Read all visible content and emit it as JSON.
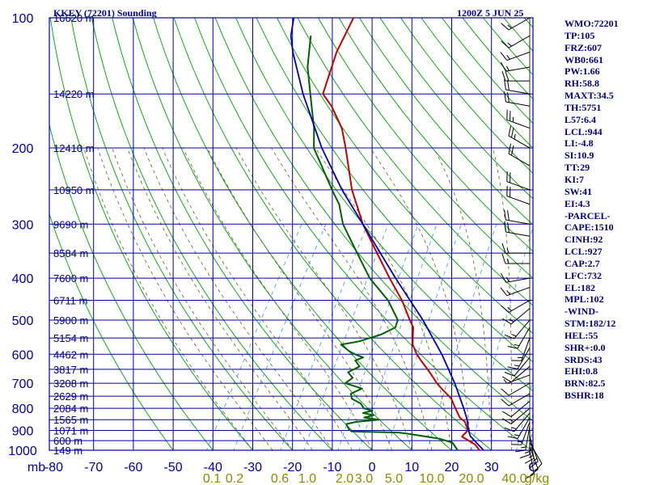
{
  "header": {
    "station": "KKEY (72201) Sounding",
    "time": "1200Z  5 JUN 25"
  },
  "colors": {
    "frame": "#0000a0",
    "dry_adiabat": "#00a000",
    "moist_adiabat": "#6b5a2a",
    "mixing_ratio": "#3399ff",
    "temperature": "#c00000",
    "dewpoint": "#006000",
    "parcel": "#0000b0",
    "wind_barb": "#000000",
    "label_text": "#0000a0",
    "mr_label": "#8c8c00"
  },
  "stats": [
    "WMO:72201",
    "TP:105",
    "FRZ:607",
    "WB0:661",
    "PW:1.66",
    "RH:58.8",
    "MAXT:34.5",
    "TH:5751",
    "L57:6.4",
    "LCL:944",
    "LI:-4.8",
    "SI:10.9",
    "TT:29",
    "KI:7",
    "SW:41",
    "EI:4.3",
    "-PARCEL-",
    "CAPE:1510",
    "CINH:92",
    "LCL:927",
    "CAP:2.7",
    "LFC:732",
    "EL:182",
    "MPL:102",
    "-WIND-",
    "STM:182/12",
    "HEL:55",
    "SHR+:0.0",
    "SRDS:43",
    "EHI:0.8",
    "BRN:82.5",
    "BSHR:18"
  ],
  "chart_data": {
    "type": "skew-t",
    "y_axis": {
      "scale": "log-pressure",
      "unit": "mb",
      "range": [
        1000,
        100
      ],
      "tick_labels": [
        "100",
        "200",
        "300",
        "400",
        "500",
        "600",
        "700",
        "800",
        "900",
        "1000"
      ]
    },
    "x_axis": {
      "unit": "C",
      "range": [
        -80,
        40
      ],
      "tick_labels": [
        "mb",
        "-80",
        "-70",
        "-60",
        "-50",
        "-40",
        "-30",
        "-20",
        "-10",
        "0",
        "10",
        "20",
        "30",
        "C"
      ]
    },
    "height_labels": [
      {
        "p": 100,
        "text": "16620 m"
      },
      {
        "p": 150,
        "text": "14220 m"
      },
      {
        "p": 200,
        "text": "12410 m"
      },
      {
        "p": 250,
        "text": "10950 m"
      },
      {
        "p": 300,
        "text": "9690 m"
      },
      {
        "p": 350,
        "text": "8584 m"
      },
      {
        "p": 400,
        "text": "7600 m"
      },
      {
        "p": 450,
        "text": "6711 m"
      },
      {
        "p": 500,
        "text": "5900 m"
      },
      {
        "p": 550,
        "text": "5154 m"
      },
      {
        "p": 600,
        "text": "4462 m"
      },
      {
        "p": 650,
        "text": "3817 m"
      },
      {
        "p": 700,
        "text": "3208 m"
      },
      {
        "p": 750,
        "text": "2629 m"
      },
      {
        "p": 800,
        "text": "2084 m"
      },
      {
        "p": 850,
        "text": "1565 m"
      },
      {
        "p": 900,
        "text": "1071 m"
      },
      {
        "p": 950,
        "text": "600 m"
      },
      {
        "p": 1000,
        "text": "149 m"
      }
    ],
    "mixing_ratio_labels": [
      "0.1",
      "0.2",
      "0.6",
      "1.0",
      "2.0",
      "3.0",
      "5.0",
      "10.0",
      "20.0",
      "40.0",
      "g/kg"
    ],
    "mixing_ratio_values": [
      0.1,
      0.2,
      0.6,
      1.0,
      2.0,
      3.0,
      5.0,
      10.0,
      20.0,
      40.0
    ],
    "series": [
      {
        "key": "temperature",
        "points": [
          [
            1012,
            28
          ],
          [
            1000,
            27
          ],
          [
            970,
            25
          ],
          [
            930,
            20.5
          ],
          [
            900,
            21
          ],
          [
            860,
            19
          ],
          [
            840,
            17
          ],
          [
            800,
            14.5
          ],
          [
            760,
            12
          ],
          [
            720,
            8
          ],
          [
            700,
            6
          ],
          [
            660,
            2.5
          ],
          [
            620,
            -1.5
          ],
          [
            600,
            -3.5
          ],
          [
            570,
            -6
          ],
          [
            550,
            -7
          ],
          [
            520,
            -8.5
          ],
          [
            500,
            -10.5
          ],
          [
            450,
            -15.5
          ],
          [
            400,
            -22
          ],
          [
            350,
            -29
          ],
          [
            300,
            -37
          ],
          [
            250,
            -45
          ],
          [
            200,
            -53
          ],
          [
            180,
            -57
          ],
          [
            160,
            -63
          ],
          [
            150,
            -67
          ],
          [
            120,
            -70
          ],
          [
            100,
            -71
          ]
        ]
      },
      {
        "key": "dewpoint",
        "points": [
          [
            1012,
            22
          ],
          [
            1000,
            21.5
          ],
          [
            960,
            19
          ],
          [
            940,
            15
          ],
          [
            920,
            8
          ],
          [
            910,
            4
          ],
          [
            905,
            -8
          ],
          [
            895,
            -9
          ],
          [
            870,
            -10.5
          ],
          [
            860,
            -8.5
          ],
          [
            850,
            -3
          ],
          [
            840,
            -7
          ],
          [
            830,
            -5
          ],
          [
            820,
            -8
          ],
          [
            810,
            -6
          ],
          [
            800,
            -8.5
          ],
          [
            780,
            -10
          ],
          [
            760,
            -13
          ],
          [
            740,
            -14
          ],
          [
            720,
            -12
          ],
          [
            700,
            -17
          ],
          [
            680,
            -16
          ],
          [
            660,
            -18
          ],
          [
            640,
            -16
          ],
          [
            620,
            -18
          ],
          [
            610,
            -16.5
          ],
          [
            600,
            -19
          ],
          [
            590,
            -21
          ],
          [
            570,
            -24
          ],
          [
            560,
            -20
          ],
          [
            540,
            -15.5
          ],
          [
            520,
            -13
          ],
          [
            500,
            -13.5
          ],
          [
            450,
            -19
          ],
          [
            400,
            -27
          ],
          [
            350,
            -34
          ],
          [
            300,
            -42
          ],
          [
            270,
            -46
          ],
          [
            250,
            -50
          ],
          [
            200,
            -61
          ],
          [
            180,
            -64
          ],
          [
            160,
            -68
          ],
          [
            130,
            -75
          ],
          [
            110,
            -79
          ]
        ]
      },
      {
        "key": "parcel",
        "points": [
          [
            1000,
            28
          ],
          [
            960,
            25
          ],
          [
            927,
            22.5
          ],
          [
            900,
            21.2
          ],
          [
            850,
            19.2
          ],
          [
            800,
            16.6
          ],
          [
            700,
            10.5
          ],
          [
            600,
            2.8
          ],
          [
            500,
            -7.2
          ],
          [
            400,
            -20.5
          ],
          [
            300,
            -37
          ],
          [
            250,
            -47.5
          ],
          [
            200,
            -59
          ],
          [
            150,
            -72
          ],
          [
            120,
            -81
          ],
          [
            110,
            -84
          ],
          [
            100,
            -86
          ]
        ]
      }
    ],
    "wind_barbs": [
      {
        "p": 1000,
        "dir": 170,
        "spd": 10
      },
      {
        "p": 980,
        "dir": 160,
        "spd": 10
      },
      {
        "p": 960,
        "dir": 150,
        "spd": 10
      },
      {
        "p": 940,
        "dir": 160,
        "spd": 15
      },
      {
        "p": 920,
        "dir": 170,
        "spd": 15
      },
      {
        "p": 900,
        "dir": 180,
        "spd": 15
      },
      {
        "p": 880,
        "dir": 190,
        "spd": 15
      },
      {
        "p": 860,
        "dir": 200,
        "spd": 15
      },
      {
        "p": 840,
        "dir": 210,
        "spd": 15
      },
      {
        "p": 820,
        "dir": 220,
        "spd": 15
      },
      {
        "p": 800,
        "dir": 230,
        "spd": 15
      },
      {
        "p": 770,
        "dir": 230,
        "spd": 10
      },
      {
        "p": 740,
        "dir": 240,
        "spd": 10
      },
      {
        "p": 700,
        "dir": 240,
        "spd": 10
      },
      {
        "p": 670,
        "dir": 250,
        "spd": 5
      },
      {
        "p": 640,
        "dir": 230,
        "spd": 10
      },
      {
        "p": 610,
        "dir": 220,
        "spd": 10
      },
      {
        "p": 580,
        "dir": 210,
        "spd": 15
      },
      {
        "p": 550,
        "dir": 200,
        "spd": 15
      },
      {
        "p": 520,
        "dir": 210,
        "spd": 15
      },
      {
        "p": 500,
        "dir": 220,
        "spd": 15
      },
      {
        "p": 470,
        "dir": 230,
        "spd": 15
      },
      {
        "p": 450,
        "dir": 240,
        "spd": 15
      },
      {
        "p": 420,
        "dir": 250,
        "spd": 15
      },
      {
        "p": 400,
        "dir": 260,
        "spd": 15
      },
      {
        "p": 370,
        "dir": 270,
        "spd": 15
      },
      {
        "p": 350,
        "dir": 270,
        "spd": 15
      },
      {
        "p": 320,
        "dir": 280,
        "spd": 20
      },
      {
        "p": 300,
        "dir": 280,
        "spd": 20
      },
      {
        "p": 270,
        "dir": 290,
        "spd": 20
      },
      {
        "p": 250,
        "dir": 290,
        "spd": 20
      },
      {
        "p": 220,
        "dir": 300,
        "spd": 20
      },
      {
        "p": 200,
        "dir": 300,
        "spd": 25
      },
      {
        "p": 180,
        "dir": 290,
        "spd": 25
      },
      {
        "p": 160,
        "dir": 280,
        "spd": 20
      },
      {
        "p": 150,
        "dir": 280,
        "spd": 20
      },
      {
        "p": 140,
        "dir": 270,
        "spd": 20
      },
      {
        "p": 130,
        "dir": 260,
        "spd": 15
      },
      {
        "p": 120,
        "dir": 250,
        "spd": 15
      },
      {
        "p": 110,
        "dir": 240,
        "spd": 15
      },
      {
        "p": 100,
        "dir": 240,
        "spd": 15
      }
    ]
  }
}
